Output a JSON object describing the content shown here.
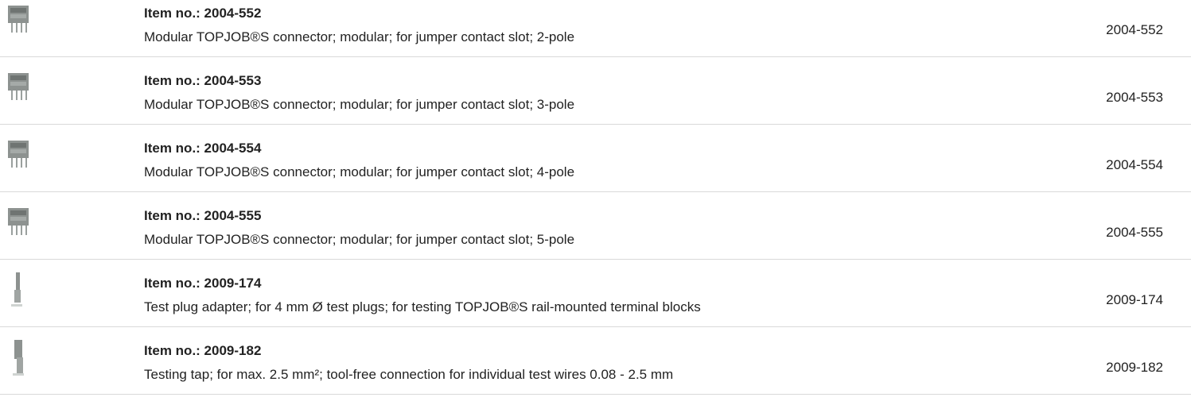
{
  "rows": [
    {
      "title": "Item no.: 2004-552",
      "description": "Modular TOPJOB®S connector; modular; for jumper contact slot; 2-pole",
      "number": "2004-552",
      "icon": "connector"
    },
    {
      "title": "Item no.: 2004-553",
      "description": "Modular TOPJOB®S connector; modular; for jumper contact slot; 3-pole",
      "number": "2004-553",
      "icon": "connector"
    },
    {
      "title": "Item no.: 2004-554",
      "description": "Modular TOPJOB®S connector; modular; for jumper contact slot; 4-pole",
      "number": "2004-554",
      "icon": "connector"
    },
    {
      "title": "Item no.: 2004-555",
      "description": "Modular TOPJOB®S connector; modular; for jumper contact slot; 5-pole",
      "number": "2004-555",
      "icon": "connector"
    },
    {
      "title": "Item no.: 2009-174",
      "description": "Test plug adapter; for 4 mm Ø test plugs; for testing TOPJOB®S rail-mounted terminal blocks",
      "number": "2009-174",
      "icon": "adapter"
    },
    {
      "title": "Item no.: 2009-182",
      "description": "Testing tap; for max. 2.5 mm²; tool-free connection for individual test wires 0.08 - 2.5 mm",
      "number": "2009-182",
      "icon": "tap"
    }
  ]
}
